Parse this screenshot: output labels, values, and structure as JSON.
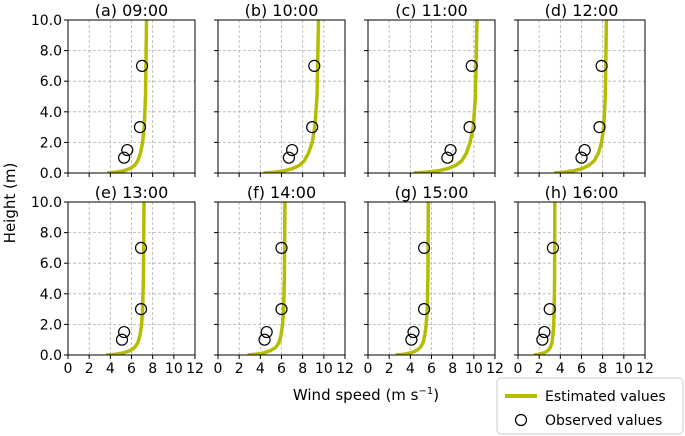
{
  "colors": {
    "estimated": "#b5bd00",
    "observed_edge": "#000000",
    "grid": "#b0b0b0"
  },
  "chart_data": {
    "type": "line",
    "layout": "2x4 small multiples",
    "xlabel": "Wind speed (m s",
    "xlabel_sup": "−1",
    "xlabel_close": ")",
    "ylabel": "Height (m)",
    "xlim": [
      0,
      12
    ],
    "ylim": [
      0,
      10
    ],
    "x_ticks": [
      "0",
      "2",
      "4",
      "6",
      "8",
      "10",
      "12"
    ],
    "y_ticks": [
      "0.0",
      "2.0",
      "4.0",
      "6.0",
      "8.0",
      "10.0"
    ],
    "grid": true,
    "legend": {
      "placement": "bottom-right",
      "items": [
        {
          "label": "Estimated values",
          "marker": "line"
        },
        {
          "label": "Observed values",
          "marker": "open-circle"
        }
      ]
    },
    "panels": [
      {
        "title": "(a) 09:00",
        "estimated_x": [
          3.7,
          4.5,
          5.3,
          5.9,
          6.3,
          6.6,
          6.85,
          7.05,
          7.2,
          7.32,
          7.42
        ],
        "observed": [
          {
            "x": 5.3,
            "y": 1.0
          },
          {
            "x": 5.6,
            "y": 1.5
          },
          {
            "x": 6.8,
            "y": 3.0
          },
          {
            "x": 7.0,
            "y": 7.0
          }
        ]
      },
      {
        "title": "(b) 10:00",
        "estimated_x": [
          4.3,
          5.3,
          6.3,
          7.1,
          7.7,
          8.15,
          8.55,
          8.9,
          9.15,
          9.35,
          9.5
        ],
        "observed": [
          {
            "x": 6.7,
            "y": 1.0
          },
          {
            "x": 7.0,
            "y": 1.5
          },
          {
            "x": 8.9,
            "y": 3.0
          },
          {
            "x": 9.1,
            "y": 7.0
          }
        ]
      },
      {
        "title": "(c) 11:00",
        "estimated_x": [
          4.3,
          5.5,
          6.7,
          7.6,
          8.3,
          8.85,
          9.3,
          9.65,
          9.95,
          10.15,
          10.3
        ],
        "observed": [
          {
            "x": 7.5,
            "y": 1.0
          },
          {
            "x": 7.8,
            "y": 1.5
          },
          {
            "x": 9.6,
            "y": 3.0
          },
          {
            "x": 9.8,
            "y": 7.0
          }
        ]
      },
      {
        "title": "(d) 12:00",
        "estimated_x": [
          3.4,
          4.3,
          5.3,
          6.1,
          6.7,
          7.2,
          7.6,
          7.9,
          8.1,
          8.25,
          8.35
        ],
        "observed": [
          {
            "x": 6.0,
            "y": 1.0
          },
          {
            "x": 6.3,
            "y": 1.5
          },
          {
            "x": 7.7,
            "y": 3.0
          },
          {
            "x": 7.9,
            "y": 7.0
          }
        ]
      },
      {
        "title": "(e) 13:00",
        "estimated_x": [
          3.6,
          4.5,
          5.3,
          5.9,
          6.3,
          6.6,
          6.8,
          6.95,
          7.05,
          7.12,
          7.18
        ],
        "observed": [
          {
            "x": 5.1,
            "y": 1.0
          },
          {
            "x": 5.3,
            "y": 1.5
          },
          {
            "x": 6.9,
            "y": 3.0
          },
          {
            "x": 6.9,
            "y": 7.0
          }
        ]
      },
      {
        "title": "(f) 14:00",
        "estimated_x": [
          2.8,
          3.6,
          4.4,
          5.0,
          5.45,
          5.75,
          5.95,
          6.1,
          6.2,
          6.27,
          6.32
        ],
        "observed": [
          {
            "x": 4.4,
            "y": 1.0
          },
          {
            "x": 4.6,
            "y": 1.5
          },
          {
            "x": 6.0,
            "y": 3.0
          },
          {
            "x": 6.0,
            "y": 7.0
          }
        ]
      },
      {
        "title": "(g) 15:00",
        "estimated_x": [
          2.6,
          3.4,
          4.1,
          4.6,
          4.95,
          5.2,
          5.38,
          5.5,
          5.6,
          5.66,
          5.7
        ],
        "observed": [
          {
            "x": 4.1,
            "y": 1.0
          },
          {
            "x": 4.3,
            "y": 1.5
          },
          {
            "x": 5.3,
            "y": 3.0
          },
          {
            "x": 5.3,
            "y": 7.0
          }
        ]
      },
      {
        "title": "(h) 16:00",
        "estimated_x": [
          1.5,
          2.0,
          2.5,
          2.85,
          3.05,
          3.2,
          3.3,
          3.37,
          3.42,
          3.46,
          3.48
        ],
        "observed": [
          {
            "x": 2.3,
            "y": 1.0
          },
          {
            "x": 2.5,
            "y": 1.5
          },
          {
            "x": 3.0,
            "y": 3.0
          },
          {
            "x": 3.3,
            "y": 7.0
          }
        ]
      }
    ],
    "estimated_heights": [
      0.0,
      0.05,
      0.15,
      0.3,
      0.5,
      0.8,
      1.3,
      2.0,
      3.0,
      5.0,
      10.0
    ]
  }
}
